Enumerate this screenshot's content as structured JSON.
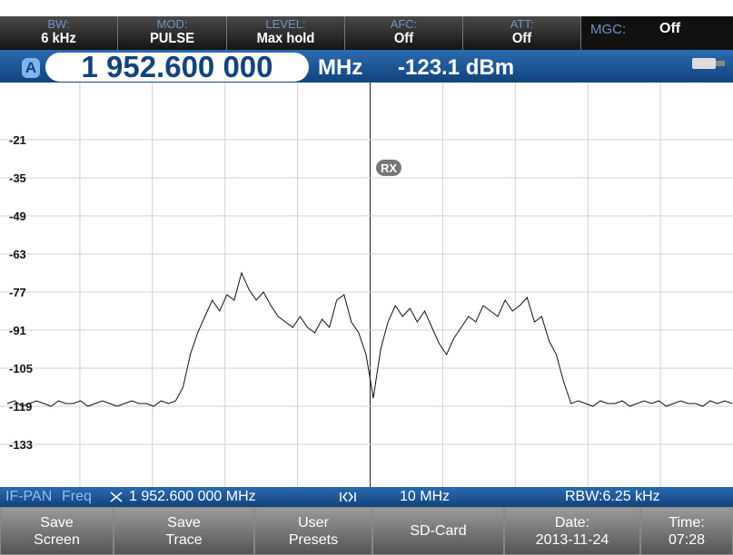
{
  "header": {
    "cells": [
      {
        "label": "BW:",
        "value": "6 kHz"
      },
      {
        "label": "MOD:",
        "value": "PULSE"
      },
      {
        "label": "LEVEL:",
        "value": "Max hold"
      },
      {
        "label": "AFC:",
        "value": "Off"
      },
      {
        "label": "ATT:",
        "value": "Off"
      },
      {
        "label": "MGC:",
        "value": "Off"
      }
    ]
  },
  "frequency_bar": {
    "channel": "A",
    "frequency": "1 952.600 000",
    "unit": "MHz",
    "level": "-123.1 dBm"
  },
  "chart_data": {
    "type": "line",
    "ylim": [
      -148,
      -8
    ],
    "yticks": [
      -21,
      -35,
      -49,
      -63,
      -77,
      -91,
      -105,
      -119,
      -133
    ],
    "grid": true,
    "color": "#111111",
    "annotation": "RX",
    "values": [
      -118,
      -117,
      -119,
      -118,
      -117,
      -118,
      -119,
      -117,
      -118,
      -118,
      -117,
      -119,
      -118,
      -117,
      -118,
      -119,
      -118,
      -117,
      -118,
      -118,
      -119,
      -117,
      -118,
      -117,
      -112,
      -100,
      -92,
      -86,
      -80,
      -84,
      -78,
      -80,
      -70,
      -76,
      -80,
      -77,
      -82,
      -86,
      -88,
      -90,
      -86,
      -90,
      -92,
      -87,
      -90,
      -80,
      -78,
      -88,
      -92,
      -100,
      -116,
      -98,
      -88,
      -82,
      -86,
      -83,
      -88,
      -84,
      -90,
      -96,
      -100,
      -94,
      -90,
      -86,
      -88,
      -82,
      -84,
      -86,
      -80,
      -84,
      -82,
      -79,
      -88,
      -86,
      -95,
      -100,
      -110,
      -118,
      -117,
      -118,
      -119,
      -117,
      -118,
      -118,
      -117,
      -119,
      -118,
      -117,
      -118,
      -117,
      -119,
      -118,
      -117,
      -118,
      -118,
      -119,
      -117,
      -118,
      -117,
      -118
    ]
  },
  "status_bar": {
    "mode": "IF-PAN",
    "freq_label": "Freq",
    "frequency": "1 952.600 000 MHz",
    "span": "10 MHz",
    "rbw": "RBW:6.25 kHz"
  },
  "softkeys": [
    {
      "lines": [
        "Save",
        "Screen"
      ]
    },
    {
      "lines": [
        "Save",
        "Trace"
      ]
    },
    {
      "lines": [
        "User",
        "Presets"
      ]
    },
    {
      "lines": [
        "SD-Card"
      ]
    },
    {
      "lines": [
        "Date:",
        "2013-11-24"
      ]
    },
    {
      "lines": [
        "Time:",
        "07:28"
      ]
    }
  ]
}
